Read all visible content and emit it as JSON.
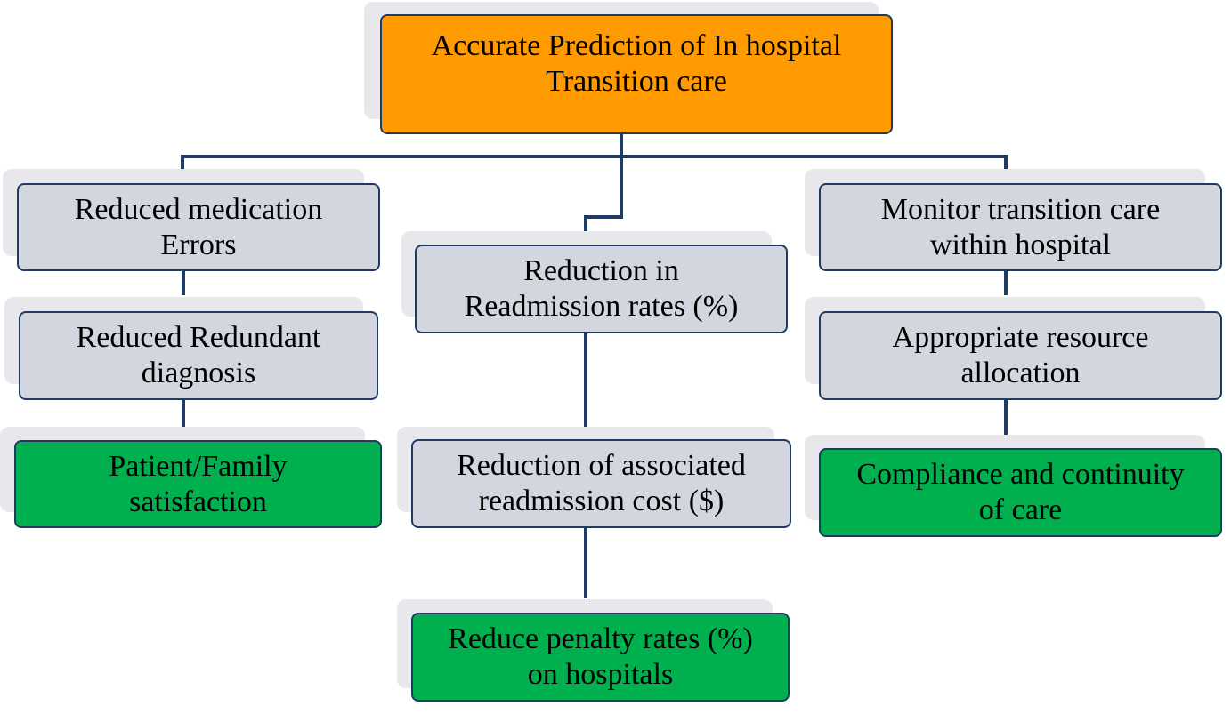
{
  "colors": {
    "root": "#ff9a00",
    "intermediate": "#d3d6de",
    "outcome": "#00b04f",
    "connector": "#1f3b63"
  },
  "root": {
    "label_line1": "Accurate Prediction of In hospital",
    "label_line2": "Transition care"
  },
  "left": {
    "n1": {
      "line1": "Reduced medication",
      "line2": "Errors"
    },
    "n2": {
      "line1": "Reduced Redundant",
      "line2": "diagnosis"
    },
    "n3": {
      "line1": "Patient/Family",
      "line2": "satisfaction"
    }
  },
  "center": {
    "n1": {
      "line1": "Reduction in",
      "line2": "Readmission rates (%)"
    },
    "n2": {
      "line1": "Reduction of associated",
      "line2": "readmission cost ($)"
    },
    "n3": {
      "line1": "Reduce penalty rates (%)",
      "line2": "on hospitals"
    }
  },
  "right": {
    "n1": {
      "line1": "Monitor transition care",
      "line2": "within hospital"
    },
    "n2": {
      "line1": "Appropriate resource",
      "line2": "allocation"
    },
    "n3": {
      "line1": "Compliance and continuity",
      "line2": "of care"
    }
  }
}
